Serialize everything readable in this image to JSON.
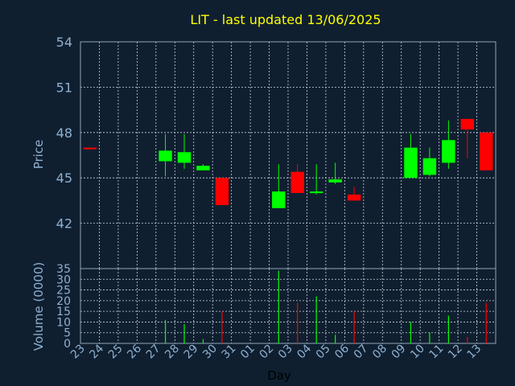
{
  "chart_data": [
    {
      "type": "candlestick",
      "title": "LIT - last updated 13/06/2025",
      "ylabel": "Price",
      "ylim": [
        39,
        54
      ],
      "yticks": [
        42,
        45,
        48,
        51,
        54
      ],
      "grid": true,
      "up_color": "#00ff00",
      "down_color": "#ff0000",
      "x": [
        "23",
        "24",
        "25",
        "26",
        "27",
        "28",
        "29",
        "30",
        "31",
        "01",
        "02",
        "03",
        "04",
        "05",
        "06",
        "07",
        "08",
        "09",
        "10",
        "11",
        "12",
        "13"
      ],
      "candles": [
        {
          "x": "23",
          "open": 47.0,
          "high": 47.0,
          "low": 46.9,
          "close": 46.9
        },
        {
          "x": "27",
          "open": 46.1,
          "high": 47.9,
          "low": 45.1,
          "close": 46.8
        },
        {
          "x": "28",
          "open": 46.0,
          "high": 47.9,
          "low": 45.6,
          "close": 46.7
        },
        {
          "x": "29",
          "open": 45.5,
          "high": 45.9,
          "low": 45.5,
          "close": 45.8
        },
        {
          "x": "30",
          "open": 45.0,
          "high": 45.0,
          "low": 43.2,
          "close": 43.2
        },
        {
          "x": "02",
          "open": 43.0,
          "high": 45.9,
          "low": 43.0,
          "close": 44.1
        },
        {
          "x": "03",
          "open": 45.4,
          "high": 45.9,
          "low": 44.0,
          "close": 44.0
        },
        {
          "x": "04",
          "open": 44.0,
          "high": 45.9,
          "low": 43.9,
          "close": 44.1
        },
        {
          "x": "05",
          "open": 44.7,
          "high": 46.0,
          "low": 44.6,
          "close": 44.9
        },
        {
          "x": "06",
          "open": 43.9,
          "high": 44.4,
          "low": 43.5,
          "close": 43.5
        },
        {
          "x": "09",
          "open": 45.0,
          "high": 47.9,
          "low": 45.0,
          "close": 47.0
        },
        {
          "x": "10",
          "open": 45.2,
          "high": 47.0,
          "low": 45.1,
          "close": 46.3
        },
        {
          "x": "11",
          "open": 46.0,
          "high": 48.8,
          "low": 45.6,
          "close": 47.5
        },
        {
          "x": "12",
          "open": 48.9,
          "high": 48.9,
          "low": 46.3,
          "close": 48.2
        },
        {
          "x": "13",
          "open": 48.0,
          "high": 48.0,
          "low": 45.5,
          "close": 45.5
        }
      ]
    },
    {
      "type": "bar",
      "ylabel": "Volume (0000)",
      "xlabel": "Day",
      "ylim": [
        0,
        35
      ],
      "yticks": [
        0,
        5,
        10,
        15,
        20,
        25,
        30,
        35
      ],
      "grid": true,
      "categories": [
        "23",
        "24",
        "25",
        "26",
        "27",
        "28",
        "29",
        "30",
        "31",
        "01",
        "02",
        "03",
        "04",
        "05",
        "06",
        "07",
        "08",
        "09",
        "10",
        "11",
        "12",
        "13"
      ],
      "bars": [
        {
          "x": "27",
          "value": 11,
          "direction": "up"
        },
        {
          "x": "28",
          "value": 9,
          "direction": "up"
        },
        {
          "x": "29",
          "value": 2,
          "direction": "up"
        },
        {
          "x": "30",
          "value": 15,
          "direction": "down"
        },
        {
          "x": "02",
          "value": 34,
          "direction": "up"
        },
        {
          "x": "03",
          "value": 19,
          "direction": "down"
        },
        {
          "x": "04",
          "value": 22,
          "direction": "up"
        },
        {
          "x": "05",
          "value": 4,
          "direction": "up"
        },
        {
          "x": "06",
          "value": 15,
          "direction": "down"
        },
        {
          "x": "09",
          "value": 10,
          "direction": "up"
        },
        {
          "x": "10",
          "value": 5,
          "direction": "up"
        },
        {
          "x": "11",
          "value": 13,
          "direction": "up"
        },
        {
          "x": "12",
          "value": 3,
          "direction": "down"
        },
        {
          "x": "13",
          "value": 19,
          "direction": "down"
        }
      ]
    }
  ]
}
